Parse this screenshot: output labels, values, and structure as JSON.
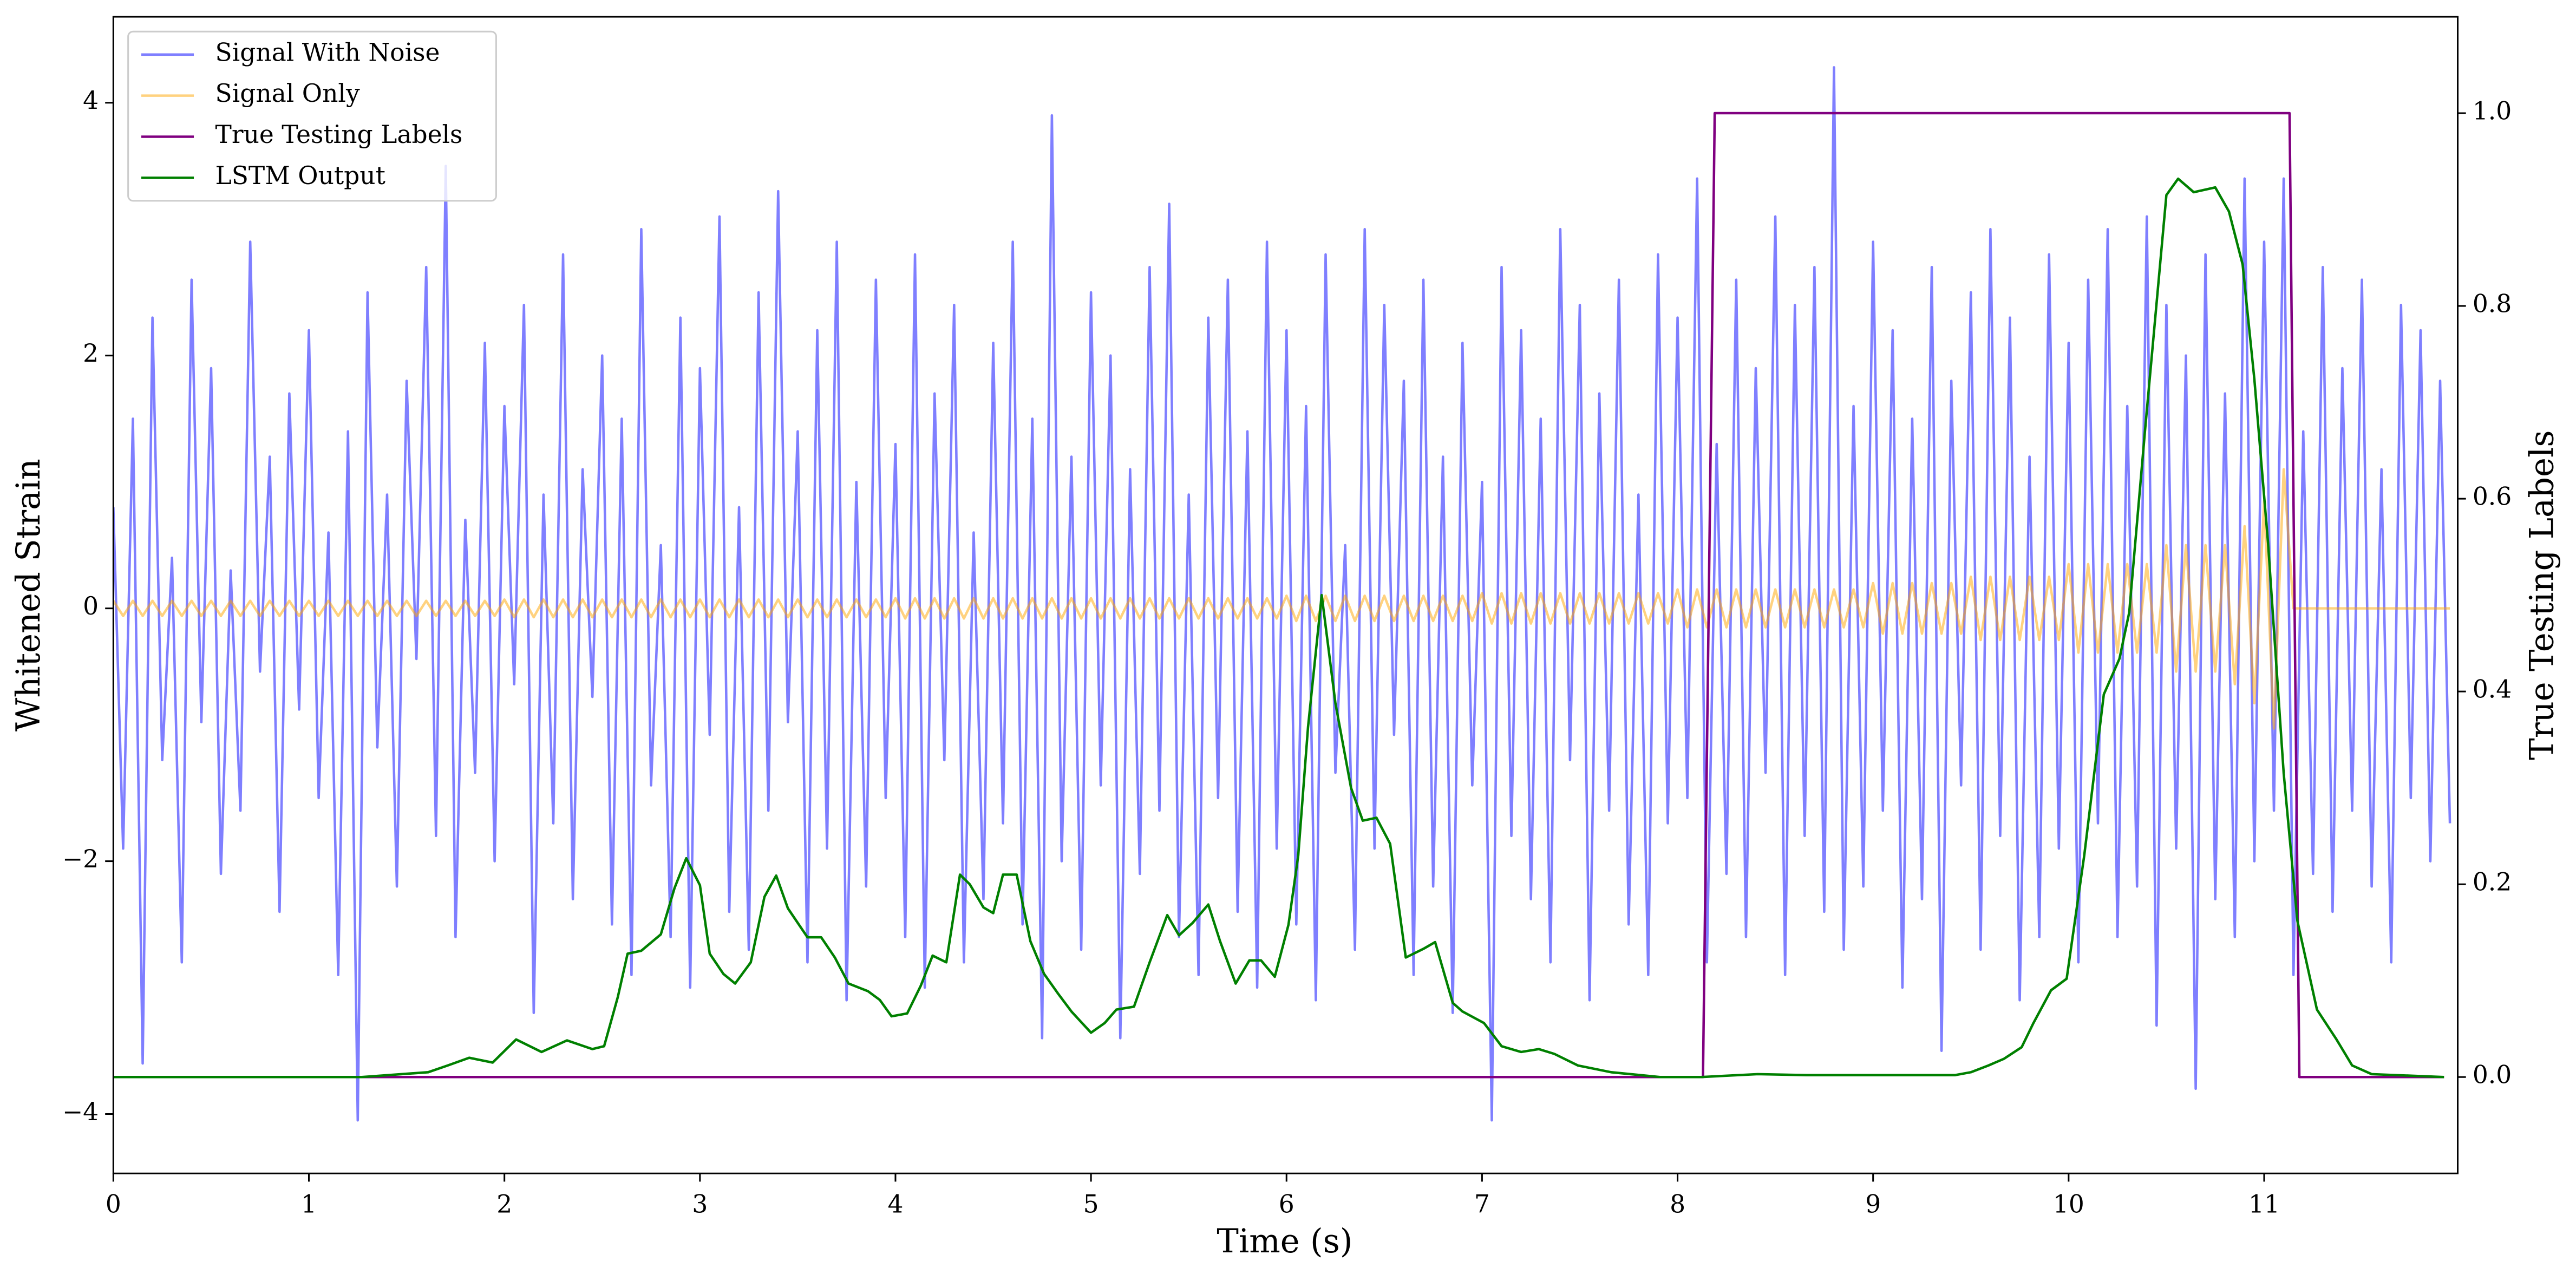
{
  "chart_data": {
    "type": "line",
    "xlabel": "Time (s)",
    "ylabel": "Whitened Strain",
    "y2label": "True Testing Labels",
    "xlim": [
      0,
      11.99
    ],
    "xticks": [
      0,
      1,
      2,
      3,
      4,
      5,
      6,
      7,
      8,
      9,
      10,
      11
    ],
    "ylim": [
      -4.47,
      4.68
    ],
    "yticks": [
      {
        "value": -4,
        "label": "−4"
      },
      {
        "value": -2,
        "label": "−2"
      },
      0,
      2,
      4
    ],
    "y2lim": [
      -0.1,
      1.1
    ],
    "y2ticks": [
      {
        "value": 0,
        "label": "0.0"
      },
      0.2,
      0.4,
      0.6,
      0.8,
      {
        "value": 1,
        "label": "1.0"
      }
    ],
    "legend": "upper left",
    "grid": false,
    "x": [
      0,
      0.05,
      0.1,
      0.15,
      0.2,
      0.25,
      0.3,
      0.35,
      0.4,
      0.45,
      0.5,
      0.55,
      0.6,
      0.65,
      0.7,
      0.75,
      0.8,
      0.85,
      0.9,
      0.95,
      1,
      1.05,
      1.1,
      1.15,
      1.2,
      1.25,
      1.3,
      1.35,
      1.4,
      1.45,
      1.5,
      1.55,
      1.6,
      1.65,
      1.7,
      1.75,
      1.8,
      1.85,
      1.9,
      1.95,
      2,
      2.05,
      2.1,
      2.15,
      2.2,
      2.25,
      2.3,
      2.35,
      2.4,
      2.45,
      2.5,
      2.55,
      2.6,
      2.65,
      2.7,
      2.75,
      2.8,
      2.85,
      2.9,
      2.95,
      3,
      3.05,
      3.1,
      3.15,
      3.2,
      3.25,
      3.3,
      3.35,
      3.4,
      3.45,
      3.5,
      3.55,
      3.6,
      3.65,
      3.7,
      3.75,
      3.8,
      3.85,
      3.9,
      3.95,
      4,
      4.05,
      4.1,
      4.15,
      4.2,
      4.25,
      4.3,
      4.35,
      4.4,
      4.45,
      4.5,
      4.55,
      4.6,
      4.65,
      4.7,
      4.75,
      4.8,
      4.85,
      4.9,
      4.95,
      5,
      5.05,
      5.1,
      5.15,
      5.2,
      5.25,
      5.3,
      5.35,
      5.4,
      5.45,
      5.5,
      5.55,
      5.6,
      5.65,
      5.7,
      5.75,
      5.8,
      5.85,
      5.9,
      5.95,
      6,
      6.05,
      6.1,
      6.15,
      6.2,
      6.25,
      6.3,
      6.35,
      6.4,
      6.45,
      6.5,
      6.55,
      6.6,
      6.65,
      6.7,
      6.75,
      6.8,
      6.85,
      6.9,
      6.95,
      7,
      7.05,
      7.1,
      7.15,
      7.2,
      7.25,
      7.3,
      7.35,
      7.4,
      7.45,
      7.5,
      7.55,
      7.6,
      7.65,
      7.7,
      7.75,
      7.8,
      7.85,
      7.9,
      7.95,
      8,
      8.05,
      8.1,
      8.15,
      8.2,
      8.25,
      8.3,
      8.35,
      8.4,
      8.45,
      8.5,
      8.55,
      8.6,
      8.65,
      8.7,
      8.75,
      8.8,
      8.85,
      8.9,
      8.95,
      9,
      9.05,
      9.1,
      9.15,
      9.2,
      9.25,
      9.3,
      9.35,
      9.4,
      9.45,
      9.5,
      9.55,
      9.6,
      9.65,
      9.7,
      9.75,
      9.8,
      9.85,
      9.9,
      9.95,
      10,
      10.05,
      10.1,
      10.15,
      10.2,
      10.25,
      10.3,
      10.35,
      10.4,
      10.45,
      10.5,
      10.55,
      10.6,
      10.65,
      10.7,
      10.75,
      10.8,
      10.85,
      10.9,
      10.95,
      11,
      11.05,
      11.1,
      11.15,
      11.2,
      11.25,
      11.3,
      11.35,
      11.4,
      11.45,
      11.5,
      11.55,
      11.6,
      11.65,
      11.7,
      11.75,
      11.8,
      11.85,
      11.9,
      11.95
    ],
    "series": [
      {
        "name": "Signal With Noise",
        "color": "#0000ff",
        "alpha": 0.5,
        "values": [
          0.8,
          -1.9,
          1.5,
          -3.6,
          2.3,
          -1.2,
          0.4,
          -2.8,
          2.6,
          -0.9,
          1.9,
          -2.1,
          0.3,
          -1.6,
          2.9,
          -0.5,
          1.2,
          -2.4,
          1.7,
          -0.8,
          2.2,
          -1.5,
          0.6,
          -2.9,
          1.4,
          -4.05,
          2.5,
          -1.1,
          0.9,
          -2.2,
          1.8,
          -0.4,
          2.7,
          -1.8,
          3.5,
          -2.6,
          0.7,
          -1.3,
          2.1,
          -2.0,
          1.6,
          -0.6,
          2.4,
          -3.2,
          0.9,
          -1.7,
          2.8,
          -2.3,
          1.1,
          -0.7,
          2.0,
          -2.5,
          1.5,
          -2.9,
          3.0,
          -1.4,
          0.5,
          -2.6,
          2.3,
          -3.0,
          1.9,
          -1.0,
          3.1,
          -2.4,
          0.8,
          -2.7,
          2.5,
          -1.6,
          3.3,
          -0.9,
          1.4,
          -2.8,
          2.2,
          -1.9,
          2.9,
          -3.1,
          1.0,
          -2.2,
          2.6,
          -1.5,
          1.3,
          -2.6,
          2.8,
          -3.0,
          1.7,
          -1.2,
          2.4,
          -2.8,
          0.6,
          -2.3,
          2.1,
          -1.7,
          2.9,
          -2.5,
          1.5,
          -3.4,
          3.9,
          -2.0,
          1.2,
          -2.7,
          2.5,
          -1.4,
          2.0,
          -3.4,
          1.1,
          -2.1,
          2.7,
          -1.6,
          3.2,
          -2.6,
          0.9,
          -2.9,
          2.3,
          -1.5,
          2.6,
          -2.4,
          1.4,
          -3.0,
          2.9,
          -1.9,
          2.2,
          -2.5,
          1.6,
          -3.1,
          2.8,
          -1.3,
          0.5,
          -2.7,
          3.0,
          -1.9,
          2.4,
          -1.0,
          1.8,
          -2.9,
          2.6,
          -2.2,
          1.2,
          -3.2,
          2.1,
          -1.4,
          1.0,
          -4.05,
          2.7,
          -1.8,
          2.2,
          -2.3,
          1.5,
          -2.8,
          3.0,
          -1.2,
          2.4,
          -3.1,
          1.7,
          -1.6,
          2.6,
          -2.5,
          0.9,
          -2.9,
          2.8,
          -1.7,
          2.3,
          -1.5,
          3.4,
          -2.8,
          1.3,
          -2.1,
          2.6,
          -2.6,
          1.9,
          -1.3,
          3.1,
          -2.9,
          2.4,
          -1.8,
          2.7,
          -2.4,
          4.28,
          -2.7,
          1.6,
          -2.2,
          2.9,
          -1.6,
          2.2,
          -3.0,
          1.5,
          -2.3,
          2.7,
          -3.5,
          1.8,
          -1.4,
          2.5,
          -2.7,
          3.0,
          -1.8,
          2.3,
          -3.1,
          1.2,
          -2.6,
          2.8,
          -1.9,
          2.1,
          -2.8,
          2.6,
          -1.7,
          3.0,
          -2.6,
          1.6,
          -2.2,
          3.1,
          -3.3,
          2.4,
          -1.9,
          2.0,
          -3.8,
          2.8,
          -2.3,
          1.7,
          -2.6,
          3.4,
          -2.0,
          2.9,
          -1.6,
          3.4,
          -2.9,
          1.4,
          -2.1,
          2.7,
          -2.4,
          1.9,
          -1.6,
          2.6,
          -2.2,
          1.1,
          -2.8,
          2.4,
          -1.5,
          2.2,
          -2.0,
          1.8,
          -1.7
        ]
      },
      {
        "name": "Signal Only",
        "color": "#ffa500",
        "alpha": 0.5,
        "values": [
          0.06,
          -0.06,
          0.06,
          -0.06,
          0.06,
          -0.06,
          0.06,
          -0.06,
          0.06,
          -0.06,
          0.06,
          -0.06,
          0.06,
          -0.06,
          0.06,
          -0.06,
          0.06,
          -0.06,
          0.06,
          -0.06,
          0.06,
          -0.06,
          0.06,
          -0.06,
          0.06,
          -0.06,
          0.06,
          -0.06,
          0.06,
          -0.06,
          0.06,
          -0.06,
          0.06,
          -0.06,
          0.06,
          -0.06,
          0.06,
          -0.06,
          0.06,
          -0.06,
          0.07,
          -0.07,
          0.07,
          -0.07,
          0.07,
          -0.07,
          0.07,
          -0.07,
          0.07,
          -0.07,
          0.07,
          -0.07,
          0.07,
          -0.07,
          0.07,
          -0.07,
          0.07,
          -0.07,
          0.07,
          -0.07,
          0.07,
          -0.07,
          0.07,
          -0.07,
          0.07,
          -0.07,
          0.07,
          -0.07,
          0.07,
          -0.07,
          0.07,
          -0.07,
          0.07,
          -0.07,
          0.07,
          -0.07,
          0.07,
          -0.07,
          0.07,
          -0.07,
          0.08,
          -0.08,
          0.08,
          -0.08,
          0.08,
          -0.08,
          0.08,
          -0.08,
          0.08,
          -0.08,
          0.08,
          -0.08,
          0.08,
          -0.08,
          0.08,
          -0.08,
          0.08,
          -0.08,
          0.08,
          -0.08,
          0.08,
          -0.08,
          0.08,
          -0.08,
          0.08,
          -0.08,
          0.08,
          -0.08,
          0.08,
          -0.08,
          0.08,
          -0.08,
          0.08,
          -0.08,
          0.08,
          -0.08,
          0.08,
          -0.08,
          0.08,
          -0.08,
          0.1,
          -0.1,
          0.1,
          -0.1,
          0.1,
          -0.1,
          0.1,
          -0.1,
          0.1,
          -0.1,
          0.1,
          -0.1,
          0.1,
          -0.1,
          0.1,
          -0.1,
          0.1,
          -0.1,
          0.1,
          -0.1,
          0.12,
          -0.12,
          0.12,
          -0.12,
          0.12,
          -0.12,
          0.12,
          -0.12,
          0.12,
          -0.12,
          0.12,
          -0.12,
          0.12,
          -0.12,
          0.12,
          -0.12,
          0.12,
          -0.12,
          0.12,
          -0.12,
          0.15,
          -0.15,
          0.15,
          -0.15,
          0.15,
          -0.15,
          0.15,
          -0.15,
          0.15,
          -0.15,
          0.15,
          -0.15,
          0.15,
          -0.15,
          0.15,
          -0.15,
          0.15,
          -0.15,
          0.15,
          -0.15,
          0.2,
          -0.2,
          0.2,
          -0.2,
          0.2,
          -0.2,
          0.2,
          -0.2,
          0.2,
          -0.2,
          0.25,
          -0.25,
          0.25,
          -0.25,
          0.25,
          -0.25,
          0.25,
          -0.25,
          0.25,
          -0.25,
          0.35,
          -0.35,
          0.35,
          -0.35,
          0.35,
          -0.35,
          0.35,
          -0.35,
          0.35,
          -0.35,
          0.5,
          -0.5,
          0.5,
          -0.5,
          0.5,
          -0.5,
          0.5,
          -0.6,
          0.65,
          -0.75,
          0.85,
          -0.95,
          1.1,
          0,
          0,
          0,
          0,
          0,
          0,
          0,
          0,
          0,
          0,
          0,
          0,
          0,
          0,
          0,
          0,
          0
        ]
      },
      {
        "name": "True Testing Labels",
        "color": "purple",
        "axis": "y2",
        "x": [
          0,
          8.13,
          8.19,
          11.13,
          11.18,
          11.92
        ],
        "values": [
          0,
          0,
          1,
          1,
          0,
          0
        ]
      },
      {
        "name": "LSTM Output",
        "color": "green",
        "axis": "y2",
        "x": [
          0,
          1.27,
          1.61,
          1.71,
          1.82,
          1.94,
          2.06,
          2.19,
          2.32,
          2.45,
          2.51,
          2.58,
          2.63,
          2.7,
          2.8,
          2.87,
          2.93,
          3.0,
          3.05,
          3.12,
          3.18,
          3.26,
          3.33,
          3.39,
          3.45,
          3.55,
          3.62,
          3.69,
          3.76,
          3.86,
          3.92,
          3.98,
          4.06,
          4.13,
          4.19,
          4.26,
          4.33,
          4.38,
          4.45,
          4.5,
          4.55,
          4.62,
          4.69,
          4.76,
          4.83,
          4.9,
          5.0,
          5.07,
          5.13,
          5.22,
          5.3,
          5.39,
          5.45,
          5.52,
          5.6,
          5.66,
          5.74,
          5.81,
          5.87,
          5.94,
          6.01,
          6.06,
          6.11,
          6.18,
          6.25,
          6.33,
          6.39,
          6.46,
          6.53,
          6.61,
          6.7,
          6.76,
          6.85,
          6.9,
          7.01,
          7.1,
          7.2,
          7.29,
          7.37,
          7.49,
          7.66,
          7.91,
          8.12,
          8.41,
          8.66,
          9.08,
          9.42,
          9.5,
          9.59,
          9.67,
          9.76,
          9.82,
          9.91,
          9.99,
          10.08,
          10.18,
          10.26,
          10.31,
          10.39,
          10.5,
          10.56,
          10.64,
          10.75,
          10.82,
          10.89,
          10.95,
          11.02,
          11.1,
          11.17,
          11.27,
          11.37,
          11.45,
          11.55,
          11.92
        ],
        "values": [
          0,
          0,
          0.005,
          0.012,
          0.02,
          0.015,
          0.039,
          0.026,
          0.038,
          0.029,
          0.032,
          0.083,
          0.128,
          0.131,
          0.148,
          0.196,
          0.227,
          0.199,
          0.128,
          0.107,
          0.097,
          0.119,
          0.187,
          0.209,
          0.175,
          0.145,
          0.145,
          0.124,
          0.097,
          0.089,
          0.08,
          0.063,
          0.066,
          0.095,
          0.126,
          0.119,
          0.21,
          0.2,
          0.176,
          0.17,
          0.21,
          0.21,
          0.141,
          0.107,
          0.087,
          0.068,
          0.046,
          0.056,
          0.07,
          0.073,
          0.119,
          0.168,
          0.147,
          0.16,
          0.179,
          0.141,
          0.097,
          0.121,
          0.121,
          0.104,
          0.158,
          0.23,
          0.363,
          0.5,
          0.388,
          0.3,
          0.266,
          0.269,
          0.242,
          0.124,
          0.133,
          0.14,
          0.077,
          0.068,
          0.056,
          0.032,
          0.026,
          0.029,
          0.024,
          0.012,
          0.005,
          0,
          0,
          0.003,
          0.002,
          0.002,
          0.002,
          0.005,
          0.012,
          0.019,
          0.031,
          0.056,
          0.09,
          0.102,
          0.23,
          0.397,
          0.434,
          0.482,
          0.669,
          0.915,
          0.932,
          0.918,
          0.923,
          0.898,
          0.843,
          0.724,
          0.554,
          0.315,
          0.162,
          0.07,
          0.039,
          0.012,
          0.003,
          0
        ]
      }
    ]
  }
}
